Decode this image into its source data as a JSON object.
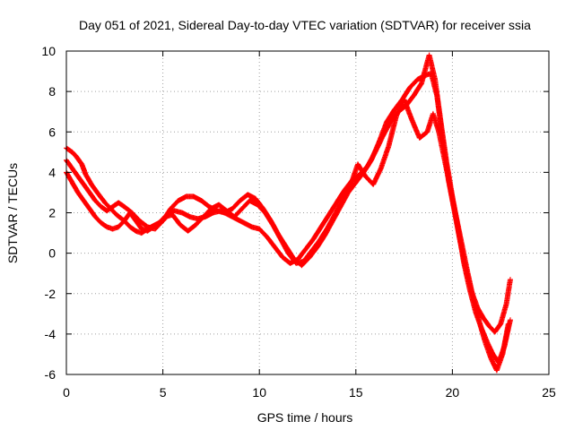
{
  "chart_data": {
    "type": "scatter",
    "title": "Day 051 of 2021, Sidereal Day-to-day VTEC variation (SDTVAR) for receiver ssia",
    "xlabel": "GPS time / hours",
    "ylabel": "SDTVAR / TECUs",
    "xlim": [
      0,
      25
    ],
    "ylim": [
      -6,
      10
    ],
    "x_ticks": [
      0,
      5,
      10,
      15,
      20,
      25
    ],
    "y_ticks": [
      -6,
      -4,
      -2,
      0,
      2,
      4,
      6,
      8,
      10
    ],
    "x_tick_labels": [
      "0",
      "5",
      "10",
      "15",
      "20",
      "25"
    ],
    "y_tick_labels": [
      "-6",
      "-4",
      "-2",
      "0",
      "2",
      "4",
      "6",
      "8",
      "10"
    ],
    "grid": true,
    "marker": "plus",
    "color": "#ff0000",
    "series": [
      {
        "x": [
          0.0,
          0.3,
          0.5,
          0.8,
          1.0,
          1.3,
          1.6,
          2.0,
          2.3,
          2.6,
          3.0,
          3.3,
          3.6,
          3.9,
          4.2,
          4.6,
          5.0,
          5.3,
          5.6,
          6.0,
          6.4,
          6.8,
          7.2,
          7.6,
          8.0,
          8.4,
          8.8,
          9.2,
          9.6,
          10.0,
          10.4,
          10.8,
          11.2,
          11.6,
          12.0,
          12.4,
          12.8,
          13.2,
          13.6,
          14.0,
          14.4,
          14.8,
          15.2,
          15.6,
          16.0,
          16.4,
          16.8,
          17.2,
          17.6,
          18.0,
          18.4,
          18.8,
          19.1,
          19.4,
          19.7,
          20.0,
          20.3,
          20.6,
          20.9,
          21.2,
          21.5,
          21.8,
          22.1,
          22.4,
          22.7,
          23.0
        ],
        "y": [
          5.2,
          5.0,
          4.8,
          4.4,
          3.9,
          3.4,
          3.0,
          2.5,
          2.2,
          1.9,
          1.6,
          1.3,
          1.1,
          1.0,
          1.2,
          1.4,
          1.6,
          1.9,
          2.1,
          2.0,
          1.8,
          1.7,
          1.8,
          2.0,
          2.1,
          1.9,
          1.7,
          1.5,
          1.3,
          1.2,
          0.8,
          0.3,
          -0.2,
          -0.5,
          -0.3,
          0.2,
          0.7,
          1.3,
          1.9,
          2.5,
          3.1,
          3.6,
          3.9,
          4.3,
          5.0,
          5.8,
          6.5,
          7.0,
          7.3,
          7.8,
          8.4,
          9.8,
          8.6,
          6.5,
          4.5,
          2.8,
          1.2,
          -0.5,
          -1.8,
          -2.9,
          -3.7,
          -4.4,
          -5.0,
          -5.4,
          -4.6,
          -3.3
        ]
      },
      {
        "x": [
          0.0,
          0.3,
          0.6,
          0.9,
          1.2,
          1.5,
          1.8,
          2.1,
          2.4,
          2.7,
          3.0,
          3.4,
          3.8,
          4.2,
          4.6,
          5.0,
          5.4,
          5.8,
          6.2,
          6.6,
          7.0,
          7.4,
          7.8,
          8.2,
          8.6,
          9.0,
          9.4,
          9.8,
          10.2,
          10.6,
          11.0,
          11.4,
          11.8,
          12.2,
          12.6,
          13.0,
          13.4,
          13.8,
          14.2,
          14.6,
          15.0,
          15.4,
          15.8,
          16.2,
          16.6,
          17.0,
          17.4,
          17.8,
          18.2,
          18.6,
          18.9,
          19.2,
          19.5,
          19.8,
          20.1,
          20.4,
          20.7,
          21.0,
          21.3,
          21.6,
          21.9,
          22.2,
          22.5,
          22.8,
          23.0
        ],
        "y": [
          4.6,
          4.2,
          3.8,
          3.4,
          3.0,
          2.6,
          2.3,
          2.1,
          2.3,
          2.5,
          2.3,
          2.0,
          1.6,
          1.3,
          1.2,
          1.6,
          2.2,
          2.6,
          2.8,
          2.8,
          2.6,
          2.3,
          2.1,
          2.0,
          2.2,
          2.6,
          2.9,
          2.7,
          2.2,
          1.6,
          0.9,
          0.3,
          -0.3,
          -0.6,
          -0.2,
          0.3,
          0.9,
          1.6,
          2.3,
          3.0,
          3.5,
          4.0,
          4.6,
          5.5,
          6.5,
          7.1,
          7.6,
          8.2,
          8.6,
          8.8,
          8.9,
          7.8,
          5.6,
          3.6,
          2.1,
          0.6,
          -0.8,
          -1.9,
          -2.7,
          -3.2,
          -3.6,
          -3.9,
          -3.5,
          -2.5,
          -1.3
        ]
      },
      {
        "x": [
          0.0,
          0.3,
          0.6,
          0.9,
          1.2,
          1.5,
          1.8,
          2.1,
          2.4,
          2.7,
          3.0,
          3.3,
          3.6,
          3.9,
          4.2,
          4.5,
          4.8,
          5.1,
          5.5,
          5.9,
          6.3,
          6.7,
          7.1,
          7.5,
          7.9,
          8.3,
          8.7,
          9.1,
          9.5,
          9.9,
          10.3,
          10.7,
          11.1,
          11.5,
          11.9,
          12.3,
          12.7,
          13.1,
          13.5,
          13.9,
          14.3,
          14.7,
          15.1,
          15.5,
          15.9,
          16.3,
          16.7,
          17.1,
          17.5,
          17.9,
          18.3,
          18.7,
          19.0,
          19.3,
          19.6,
          19.9,
          20.2,
          20.5,
          20.8,
          21.1,
          21.4,
          21.7,
          22.0,
          22.3,
          22.6,
          22.9
        ],
        "y": [
          4.0,
          3.5,
          3.0,
          2.6,
          2.2,
          1.8,
          1.5,
          1.3,
          1.2,
          1.3,
          1.6,
          2.0,
          1.6,
          1.2,
          1.1,
          1.3,
          1.5,
          1.8,
          1.9,
          1.4,
          1.1,
          1.4,
          1.8,
          2.2,
          2.4,
          2.1,
          1.8,
          2.2,
          2.6,
          2.4,
          2.0,
          1.4,
          0.7,
          0.0,
          -0.5,
          -0.4,
          0.1,
          0.6,
          1.2,
          1.9,
          2.6,
          3.3,
          4.4,
          3.8,
          3.4,
          4.2,
          5.3,
          6.8,
          7.6,
          6.6,
          5.7,
          6.0,
          6.9,
          6.0,
          4.6,
          3.2,
          1.8,
          0.4,
          -1.0,
          -2.3,
          -3.4,
          -4.4,
          -5.2,
          -5.8,
          -5.0,
          -3.5
        ]
      }
    ]
  }
}
